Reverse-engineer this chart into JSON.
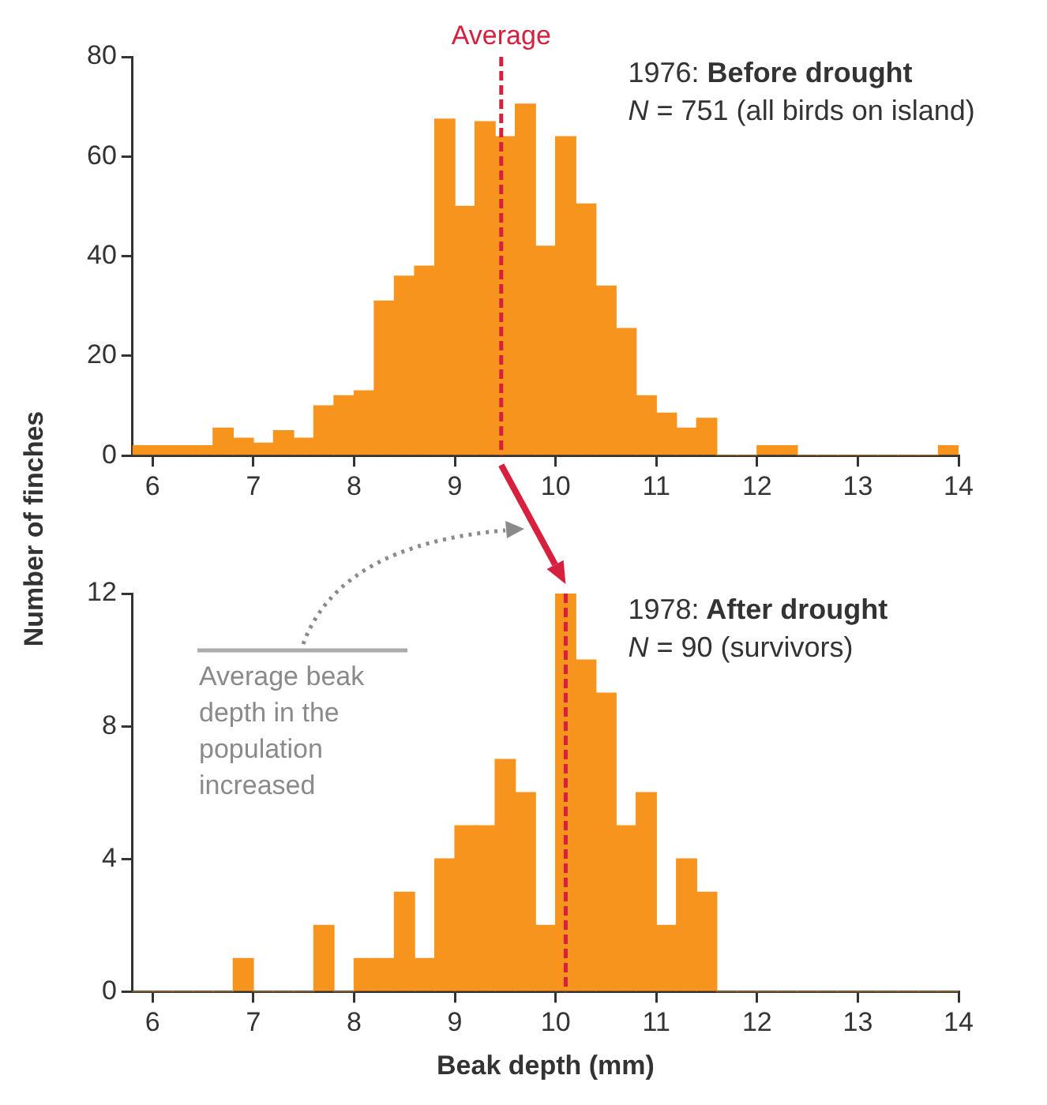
{
  "chart_data": [
    {
      "type": "histogram",
      "title": "1976: Before drought",
      "subtitle": "N = 751 (all birds on island)",
      "ylabel": "Number of finches",
      "bins": [
        5.8,
        6.0,
        6.2,
        6.4,
        6.6,
        6.8,
        7.0,
        7.2,
        7.4,
        7.6,
        7.8,
        8.0,
        8.2,
        8.4,
        8.6,
        8.8,
        9.0,
        9.2,
        9.4,
        9.6,
        9.8,
        10.0,
        10.2,
        10.4,
        10.6,
        10.8,
        11.0,
        11.2,
        11.4,
        11.6,
        11.8,
        12.0,
        12.2,
        12.4,
        12.6,
        12.8,
        13.0,
        13.2,
        13.4,
        13.6,
        13.8,
        14.0
      ],
      "values": [
        2,
        2,
        2,
        2,
        5.5,
        3.5,
        2.5,
        5,
        3.5,
        10,
        12,
        13,
        31,
        36,
        38,
        67.5,
        50,
        67,
        64,
        70.5,
        42,
        64,
        50.5,
        34,
        25.5,
        12,
        8.5,
        5.5,
        7.5,
        0,
        0,
        2,
        2,
        0,
        0,
        0,
        0,
        0,
        0,
        0,
        2
      ],
      "color": "#f7941d",
      "xlim": [
        5.8,
        14
      ],
      "xticks": [
        6,
        7,
        8,
        9,
        10,
        11,
        12,
        13,
        14
      ],
      "ylim": [
        0,
        80
      ],
      "yticks": [
        0,
        20,
        40,
        60,
        80
      ],
      "grid": false,
      "ref_lines": [
        {
          "axis": "x",
          "value": 9.46,
          "label": "Average",
          "color": "#d6203e",
          "line_style": "dashed"
        }
      ]
    },
    {
      "type": "histogram",
      "title": "1978: After drought",
      "subtitle": "N = 90 (survivors)",
      "xlabel": "Beak depth (mm)",
      "bins": [
        5.8,
        6.0,
        6.2,
        6.4,
        6.6,
        6.8,
        7.0,
        7.2,
        7.4,
        7.6,
        7.8,
        8.0,
        8.2,
        8.4,
        8.6,
        8.8,
        9.0,
        9.2,
        9.4,
        9.6,
        9.8,
        10.0,
        10.2,
        10.4,
        10.6,
        10.8,
        11.0,
        11.2,
        11.4,
        11.6,
        11.8,
        12.0,
        12.2,
        12.4,
        12.6,
        12.8,
        13.0,
        13.2,
        13.4,
        13.6,
        13.8,
        14.0
      ],
      "values": [
        0,
        0,
        0,
        0,
        0,
        1,
        0,
        0,
        0,
        2,
        0,
        1,
        1,
        3,
        1,
        4,
        5,
        5,
        7,
        6,
        2,
        12,
        10,
        9,
        5,
        6,
        2,
        4,
        3,
        0,
        0,
        0,
        0,
        0,
        0,
        0,
        0,
        0,
        0,
        0,
        0
      ],
      "color": "#f7941d",
      "xlim": [
        5.8,
        14
      ],
      "xticks": [
        6,
        7,
        8,
        9,
        10,
        11,
        12,
        13,
        14
      ],
      "ylim": [
        0,
        12
      ],
      "yticks": [
        0,
        4,
        8,
        12
      ],
      "grid": false,
      "ref_lines": [
        {
          "axis": "x",
          "value": 10.1,
          "color": "#d6203e",
          "line_style": "dashed"
        }
      ],
      "annotations": [
        "Average beak depth in the population increased"
      ]
    }
  ]
}
